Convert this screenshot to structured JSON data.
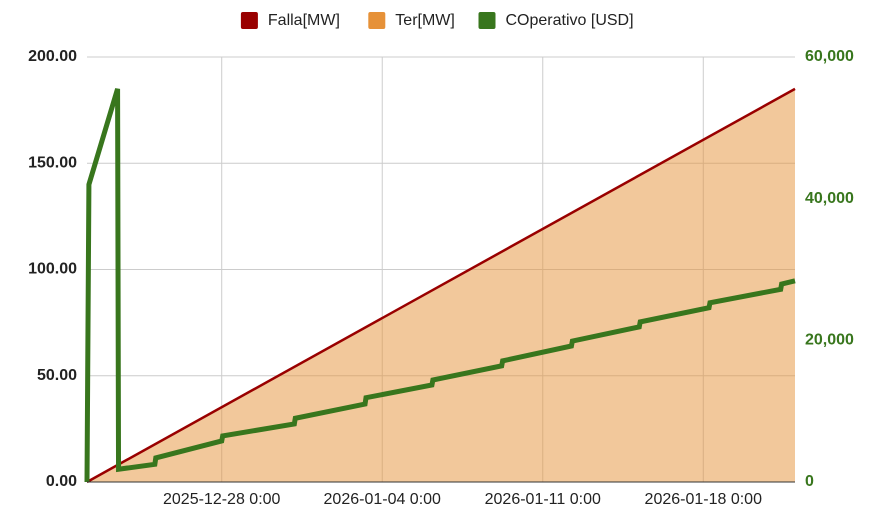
{
  "chart_data": {
    "type": "line",
    "x_format": "date-time",
    "xlim": [
      "2025-12-22 3:00",
      "2026-01-22 0:00"
    ],
    "xticks": [
      "2025-12-28 0:00",
      "2026-01-04 0:00",
      "2026-01-11 0:00",
      "2026-01-18 0:00"
    ],
    "ylim": [
      0,
      200
    ],
    "yticks": [
      {
        "value": 0,
        "label": "0.00"
      },
      {
        "value": 50,
        "label": "50.00"
      },
      {
        "value": 100,
        "label": "100.00"
      },
      {
        "value": 150,
        "label": "150.00"
      },
      {
        "value": 200,
        "label": "200.00"
      }
    ],
    "y2lim": [
      0,
      60000
    ],
    "y2ticks": [
      0,
      {
        "value": 20000,
        "label": "20,000"
      },
      {
        "value": 40000,
        "label": "40,000"
      },
      {
        "value": 60000,
        "label": "60,000"
      }
    ],
    "grid": true,
    "legend": "top",
    "series": [
      {
        "name": "Falla[MW]",
        "color": "#990000",
        "style": "line",
        "x": [
          "2025-12-22 3:00",
          "2026-01-22 0:00"
        ],
        "values": [
          0,
          185
        ]
      },
      {
        "name": "Ter[MW]",
        "color": "#e69138",
        "style": "area",
        "x": [
          "2025-12-22 3:00",
          "2026-01-22 0:00"
        ],
        "values": [
          0,
          185
        ]
      },
      {
        "name": "COperativo [USD]",
        "color": "#38761d",
        "style": "line",
        "axis": "y2",
        "x": [
          "2025-12-22 3:00",
          "2025-12-22 5:00",
          "2025-12-23 11:00",
          "2025-12-23 12:00",
          "2025-12-25 2:00",
          "2025-12-25 3:00",
          "2025-12-28 0:00",
          "2025-12-28 1:00",
          "2025-12-31 4:00",
          "2025-12-31 5:00",
          "2026-01-03 6:00",
          "2026-01-03 7:00",
          "2026-01-06 4:00",
          "2026-01-06 5:00",
          "2026-01-09 5:00",
          "2026-01-09 6:00",
          "2026-01-12 6:00",
          "2026-01-12 7:00",
          "2026-01-15 5:00",
          "2026-01-15 6:00",
          "2026-01-18 6:00",
          "2026-01-18 7:00",
          "2026-01-21 9:00",
          "2026-01-21 10:00",
          "2026-01-22 0:00"
        ],
        "values": [
          0,
          42000,
          55500,
          1800,
          2500,
          3400,
          5800,
          6500,
          8200,
          9000,
          11000,
          11900,
          13700,
          14400,
          16400,
          17100,
          19200,
          19900,
          21900,
          22600,
          24600,
          25300,
          27200,
          27950,
          28400
        ]
      }
    ]
  }
}
